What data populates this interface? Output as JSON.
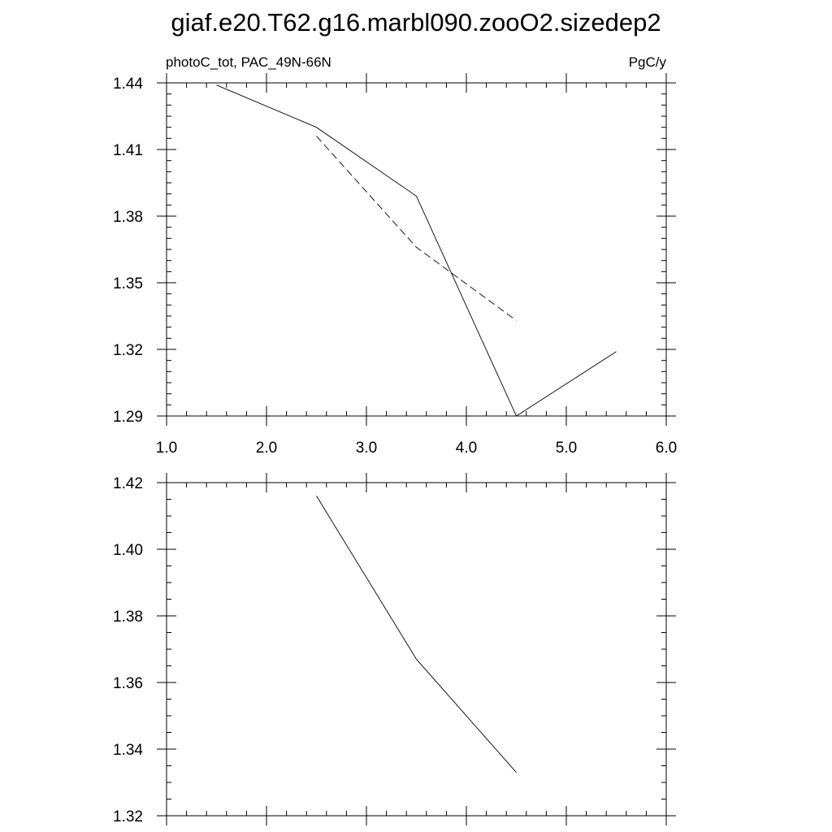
{
  "title": "giaf.e20.T62.g16.marbl090.zooO2.sizedep2",
  "colors": {
    "line": "#000000",
    "background": "#ffffff"
  },
  "chart_data": [
    {
      "type": "line",
      "left_label": "photoC_tot, PAC_49N-66N",
      "right_label": "PgC/y",
      "xlim": [
        1.0,
        6.0
      ],
      "ylim": [
        1.29,
        1.44
      ],
      "xticks": [
        1.0,
        2.0,
        3.0,
        4.0,
        5.0,
        6.0
      ],
      "xtick_labels": [
        "1.0",
        "2.0",
        "3.0",
        "4.0",
        "5.0",
        "6.0"
      ],
      "yticks": [
        1.29,
        1.32,
        1.35,
        1.38,
        1.41,
        1.44
      ],
      "ytick_labels": [
        "1.29",
        "1.32",
        "1.35",
        "1.38",
        "1.41",
        "1.44"
      ],
      "x_minor": 0.2,
      "y_minor": 0.005,
      "grid": false,
      "series": [
        {
          "style": "solid",
          "x": [
            1.5,
            2.5,
            3.5,
            4.5,
            5.5
          ],
          "y": [
            1.439,
            1.42,
            1.389,
            1.29,
            1.319
          ]
        },
        {
          "style": "dashed",
          "x": [
            2.5,
            3.5,
            4.5
          ],
          "y": [
            1.416,
            1.366,
            1.333
          ]
        }
      ]
    },
    {
      "type": "line",
      "xlim": [
        1.0,
        6.0
      ],
      "ylim": [
        1.32,
        1.42
      ],
      "xticks": [
        1.0,
        2.0,
        3.0,
        4.0,
        5.0,
        6.0
      ],
      "yticks": [
        1.32,
        1.34,
        1.36,
        1.38,
        1.4,
        1.42
      ],
      "ytick_labels": [
        "1.32",
        "1.34",
        "1.36",
        "1.38",
        "1.40",
        "1.42"
      ],
      "x_minor": 0.2,
      "y_minor": 0.005,
      "grid": false,
      "series": [
        {
          "style": "solid",
          "x": [
            2.5,
            3.5,
            4.5
          ],
          "y": [
            1.416,
            1.367,
            1.333
          ]
        }
      ]
    }
  ]
}
